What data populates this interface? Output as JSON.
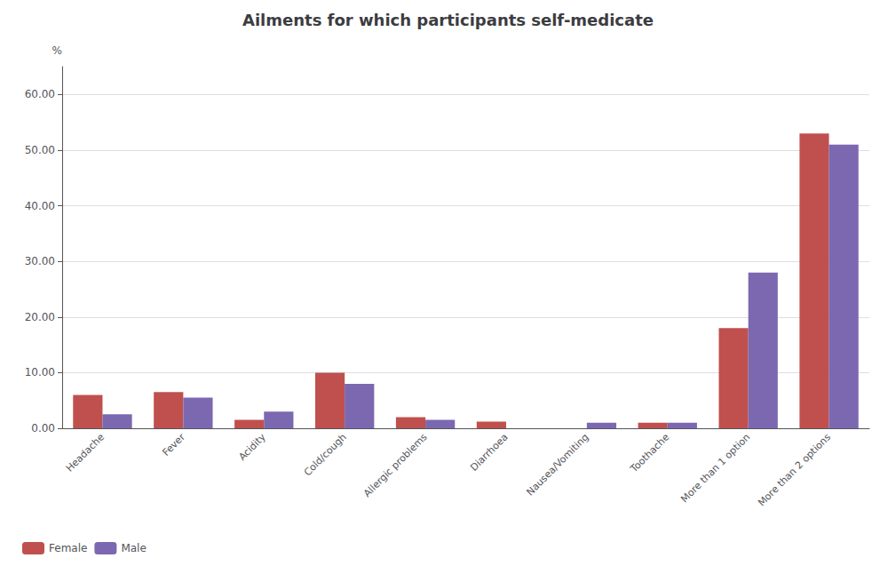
{
  "chart_data": {
    "type": "bar",
    "title": "Ailments for which participants self-medicate",
    "ylabel": "%",
    "categories": [
      "Headache",
      "Fever",
      "Acidity",
      "Cold/cough",
      "Allergic problems",
      "Diarrhoea",
      "Nausea/Vomiting",
      "Toothache",
      "More than 1 option",
      "More than 2 options"
    ],
    "series": [
      {
        "name": "Female",
        "color": "#c0504d",
        "values": [
          6.0,
          6.5,
          1.5,
          10.0,
          2.0,
          1.2,
          0.0,
          1.0,
          18.0,
          53.0
        ]
      },
      {
        "name": "Male",
        "color": "#7b68b0",
        "values": [
          2.5,
          5.5,
          3.0,
          8.0,
          1.5,
          0.0,
          1.0,
          1.0,
          28.0,
          51.0
        ]
      }
    ],
    "ylim": [
      0,
      65
    ],
    "yticks": [
      {
        "value": 0,
        "label": "0.00"
      },
      {
        "value": 10,
        "label": "10.00"
      },
      {
        "value": 20,
        "label": "20.00"
      },
      {
        "value": 30,
        "label": "30.00"
      },
      {
        "value": 40,
        "label": "40.00"
      },
      {
        "value": 50,
        "label": "50.00"
      },
      {
        "value": 60,
        "label": "60.00"
      }
    ],
    "grid": true,
    "legend": "lower left"
  }
}
